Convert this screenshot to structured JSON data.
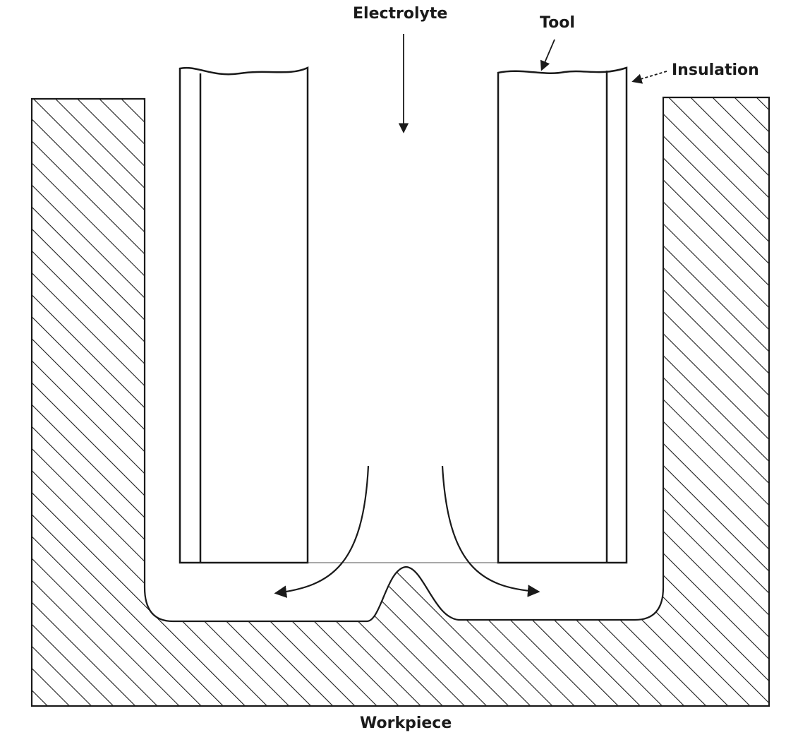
{
  "labels": {
    "electrolyte": "Electrolyte",
    "tool": "Tool",
    "insulation": "Insulation",
    "workpiece": "Workpiece"
  },
  "colors": {
    "line": "#1a1a1a",
    "background": "#ffffff"
  }
}
